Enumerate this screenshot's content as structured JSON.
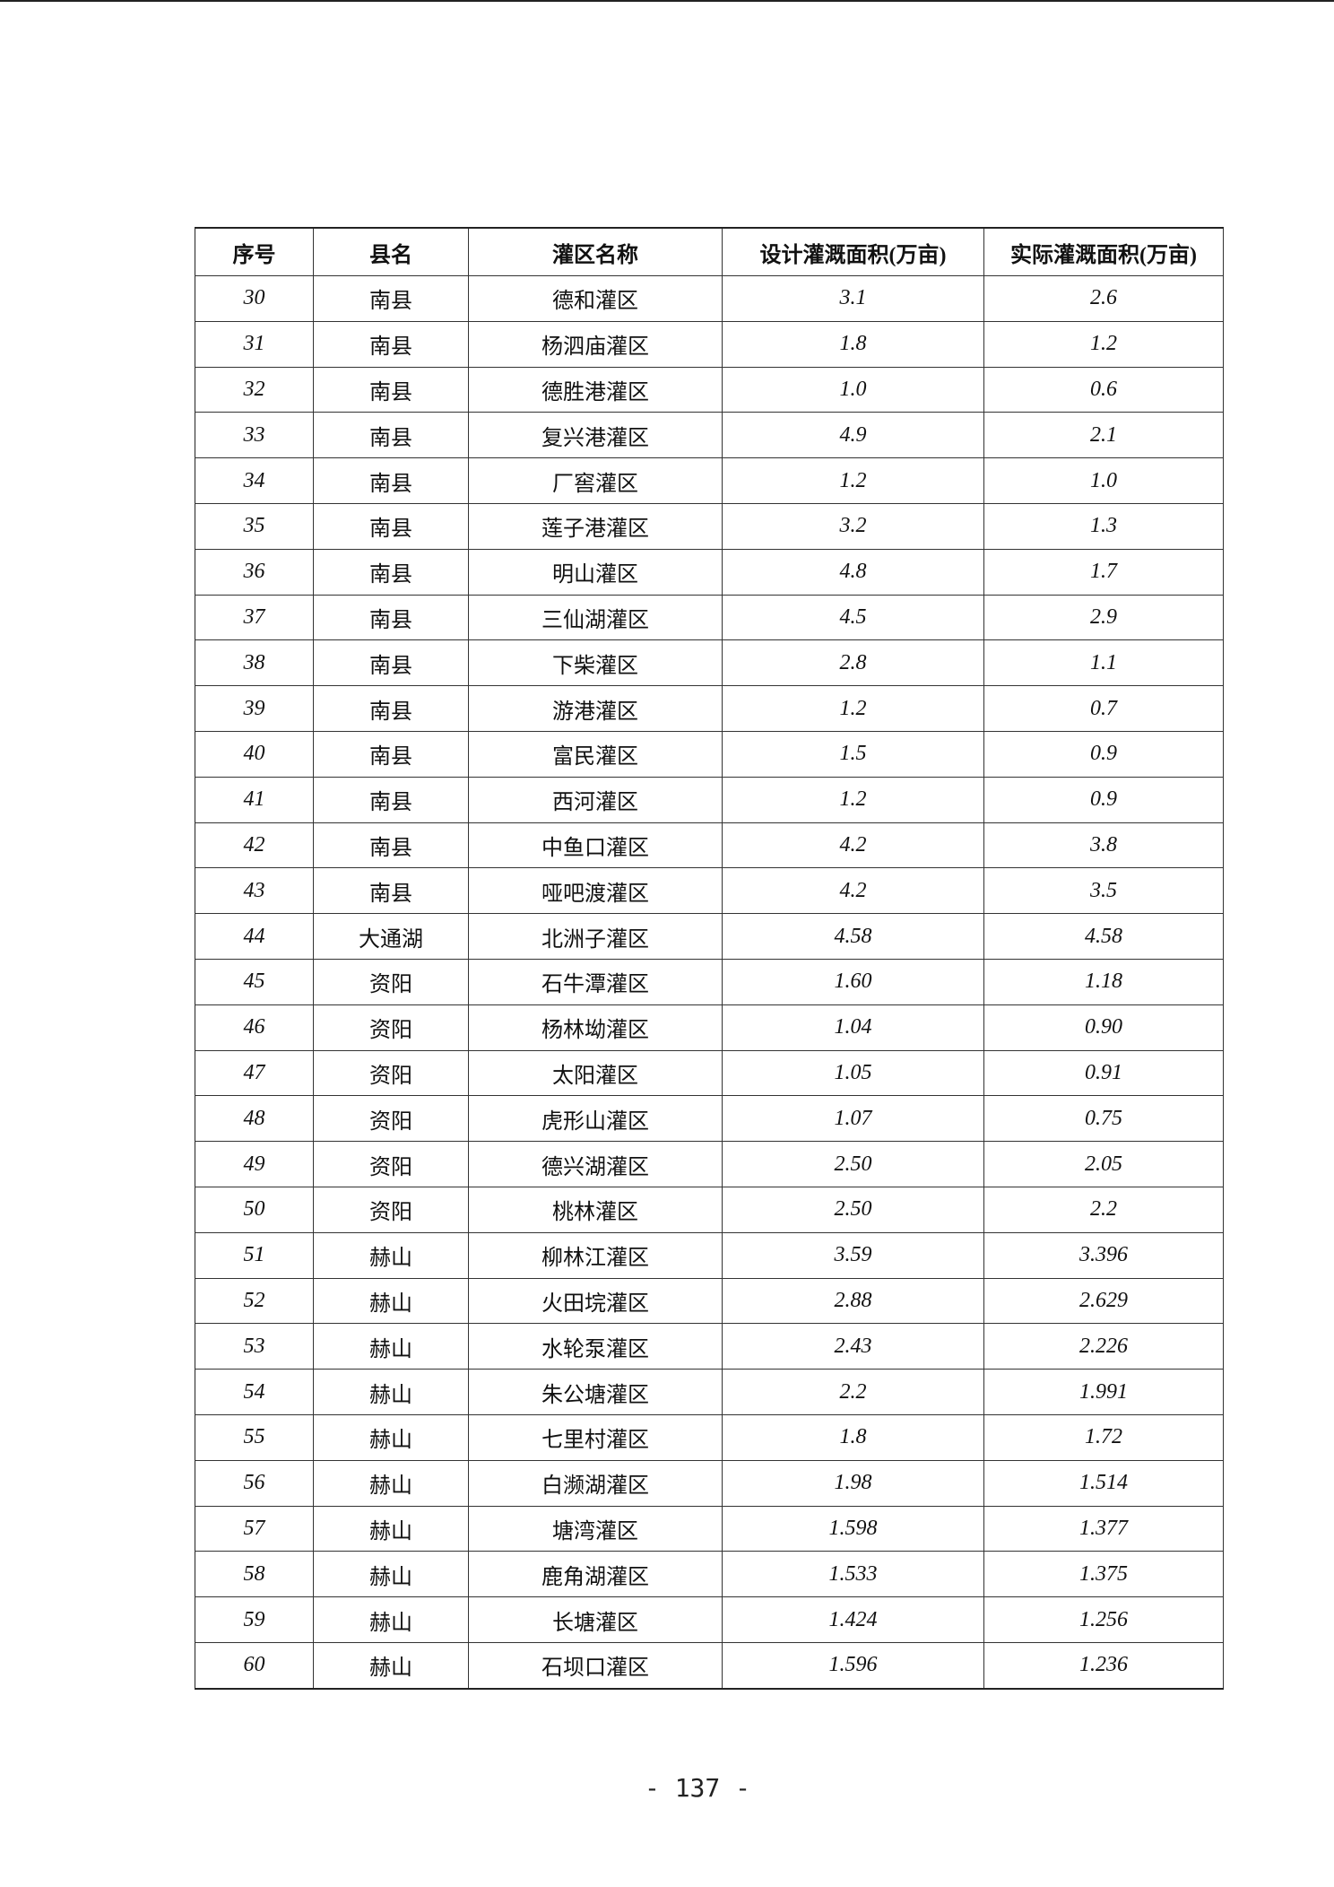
{
  "table": {
    "headers": [
      "序号",
      "县名",
      "灌区名称",
      "设计灌溉面积(万亩)",
      "实际灌溉面积(万亩)"
    ],
    "rows": [
      [
        "30",
        "南县",
        "德和灌区",
        "3.1",
        "2.6"
      ],
      [
        "31",
        "南县",
        "杨泗庙灌区",
        "1.8",
        "1.2"
      ],
      [
        "32",
        "南县",
        "德胜港灌区",
        "1.0",
        "0.6"
      ],
      [
        "33",
        "南县",
        "复兴港灌区",
        "4.9",
        "2.1"
      ],
      [
        "34",
        "南县",
        "厂窖灌区",
        "1.2",
        "1.0"
      ],
      [
        "35",
        "南县",
        "莲子港灌区",
        "3.2",
        "1.3"
      ],
      [
        "36",
        "南县",
        "明山灌区",
        "4.8",
        "1.7"
      ],
      [
        "37",
        "南县",
        "三仙湖灌区",
        "4.5",
        "2.9"
      ],
      [
        "38",
        "南县",
        "下柴灌区",
        "2.8",
        "1.1"
      ],
      [
        "39",
        "南县",
        "游港灌区",
        "1.2",
        "0.7"
      ],
      [
        "40",
        "南县",
        "富民灌区",
        "1.5",
        "0.9"
      ],
      [
        "41",
        "南县",
        "西河灌区",
        "1.2",
        "0.9"
      ],
      [
        "42",
        "南县",
        "中鱼口灌区",
        "4.2",
        "3.8"
      ],
      [
        "43",
        "南县",
        "哑吧渡灌区",
        "4.2",
        "3.5"
      ],
      [
        "44",
        "大通湖",
        "北洲子灌区",
        "4.58",
        "4.58"
      ],
      [
        "45",
        "资阳",
        "石牛潭灌区",
        "1.60",
        "1.18"
      ],
      [
        "46",
        "资阳",
        "杨林坳灌区",
        "1.04",
        "0.90"
      ],
      [
        "47",
        "资阳",
        "太阳灌区",
        "1.05",
        "0.91"
      ],
      [
        "48",
        "资阳",
        "虎形山灌区",
        "1.07",
        "0.75"
      ],
      [
        "49",
        "资阳",
        "德兴湖灌区",
        "2.50",
        "2.05"
      ],
      [
        "50",
        "资阳",
        "桃林灌区",
        "2.50",
        "2.2"
      ],
      [
        "51",
        "赫山",
        "柳林江灌区",
        "3.59",
        "3.396"
      ],
      [
        "52",
        "赫山",
        "火田垸灌区",
        "2.88",
        "2.629"
      ],
      [
        "53",
        "赫山",
        "水轮泵灌区",
        "2.43",
        "2.226"
      ],
      [
        "54",
        "赫山",
        "朱公塘灌区",
        "2.2",
        "1.991"
      ],
      [
        "55",
        "赫山",
        "七里村灌区",
        "1.8",
        "1.72"
      ],
      [
        "56",
        "赫山",
        "白濒湖灌区",
        "1.98",
        "1.514"
      ],
      [
        "57",
        "赫山",
        "塘湾灌区",
        "1.598",
        "1.377"
      ],
      [
        "58",
        "赫山",
        "鹿角湖灌区",
        "1.533",
        "1.375"
      ],
      [
        "59",
        "赫山",
        "长塘灌区",
        "1.424",
        "1.256"
      ],
      [
        "60",
        "赫山",
        "石坝口灌区",
        "1.596",
        "1.236"
      ]
    ]
  },
  "page_number": "- 137 -"
}
